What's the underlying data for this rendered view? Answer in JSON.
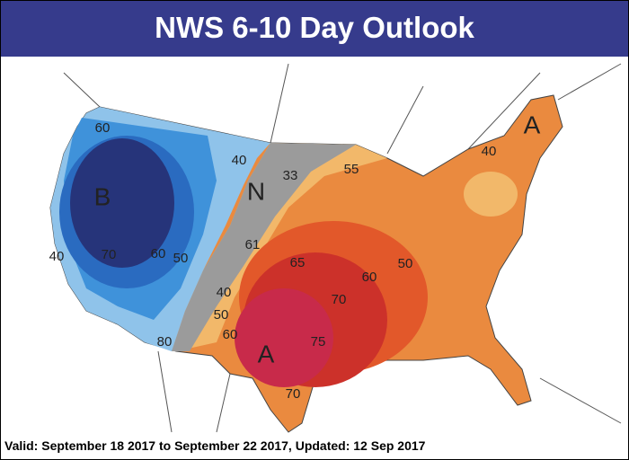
{
  "title": "NWS 6-10 Day Outlook",
  "map_labels": [
    "60",
    "B",
    "40",
    "33",
    "N",
    "55",
    "40",
    "A",
    "40",
    "70",
    "60",
    "50",
    "61",
    "65",
    "60",
    "50",
    "40",
    "70",
    "50",
    "60",
    "75",
    "A",
    "80",
    "70"
  ],
  "footer": "Valid: September 18 2017 to September 22 2017, Updated: 12 Sep 2017"
}
